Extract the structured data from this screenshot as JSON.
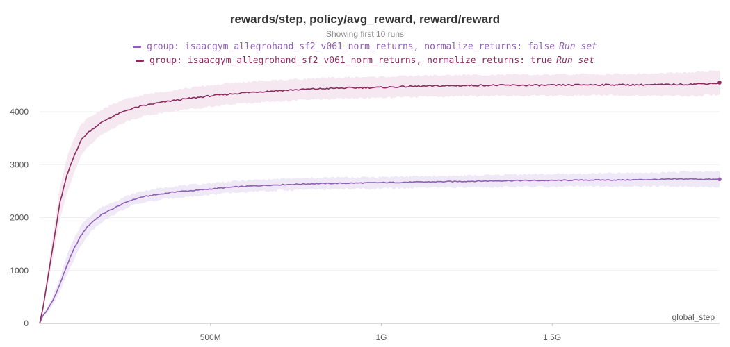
{
  "chart_data": {
    "type": "line",
    "title": "rewards/step, policy/avg_reward, reward/reward",
    "subtitle": "Showing first 10 runs",
    "xlabel": "global_step",
    "ylabel": "",
    "xlim": [
      0,
      1990000000
    ],
    "ylim": [
      0,
      4800
    ],
    "x_ticks": [
      500000000,
      1000000000,
      1500000000
    ],
    "x_tick_labels": [
      "500M",
      "1G",
      "1.5G"
    ],
    "y_ticks": [
      0,
      1000,
      2000,
      3000,
      4000
    ],
    "y_tick_labels": [
      "0",
      "1000",
      "2000",
      "3000",
      "4000"
    ],
    "grid": true,
    "legend_position": "top-center",
    "series": [
      {
        "name": "group: isaacgym_allegrohand_sf2_v061_norm_returns, normalize_returns: false",
        "suffix": "Run set",
        "color": "#8f5fb5",
        "band_color": "#ede5f6",
        "x": [
          0,
          10000000,
          20000000,
          40000000,
          60000000,
          80000000,
          100000000,
          120000000,
          140000000,
          160000000,
          180000000,
          200000000,
          230000000,
          260000000,
          300000000,
          350000000,
          400000000,
          450000000,
          500000000,
          550000000,
          600000000,
          700000000,
          800000000,
          900000000,
          1000000000,
          1100000000,
          1200000000,
          1300000000,
          1400000000,
          1500000000,
          1600000000,
          1700000000,
          1800000000,
          1900000000,
          1990000000
        ],
        "y": [
          0,
          150,
          230,
          450,
          750,
          1100,
          1400,
          1650,
          1830,
          1950,
          2050,
          2120,
          2220,
          2310,
          2390,
          2440,
          2490,
          2510,
          2540,
          2570,
          2590,
          2620,
          2640,
          2650,
          2660,
          2670,
          2680,
          2690,
          2700,
          2700,
          2710,
          2710,
          2720,
          2730,
          2720
        ],
        "band": [
          0,
          30,
          40,
          80,
          130,
          180,
          200,
          190,
          170,
          150,
          140,
          130,
          120,
          110,
          110,
          110,
          110,
          110,
          110,
          110,
          110,
          110,
          110,
          110,
          110,
          110,
          110,
          110,
          120,
          120,
          120,
          130,
          130,
          140,
          150
        ]
      },
      {
        "name": "group: isaacgym_allegrohand_sf2_v061_norm_returns, normalize_returns: true",
        "suffix": "Run set",
        "color": "#8c2a5f",
        "band_color": "#f4e6ee",
        "x": [
          0,
          10000000,
          20000000,
          40000000,
          60000000,
          80000000,
          100000000,
          120000000,
          140000000,
          160000000,
          180000000,
          200000000,
          230000000,
          260000000,
          300000000,
          350000000,
          400000000,
          450000000,
          500000000,
          550000000,
          600000000,
          700000000,
          800000000,
          900000000,
          1000000000,
          1100000000,
          1200000000,
          1300000000,
          1400000000,
          1500000000,
          1600000000,
          1700000000,
          1800000000,
          1900000000,
          1990000000
        ],
        "y": [
          0,
          300,
          700,
          1500,
          2300,
          2800,
          3150,
          3450,
          3600,
          3700,
          3790,
          3870,
          3960,
          4040,
          4110,
          4170,
          4220,
          4260,
          4300,
          4330,
          4360,
          4400,
          4430,
          4450,
          4460,
          4480,
          4490,
          4500,
          4500,
          4500,
          4510,
          4510,
          4510,
          4520,
          4540
        ],
        "band": [
          0,
          60,
          120,
          220,
          300,
          330,
          320,
          300,
          270,
          250,
          240,
          230,
          220,
          210,
          200,
          200,
          200,
          200,
          200,
          200,
          200,
          200,
          200,
          200,
          200,
          200,
          200,
          200,
          200,
          200,
          200,
          200,
          210,
          220,
          230
        ]
      }
    ]
  }
}
